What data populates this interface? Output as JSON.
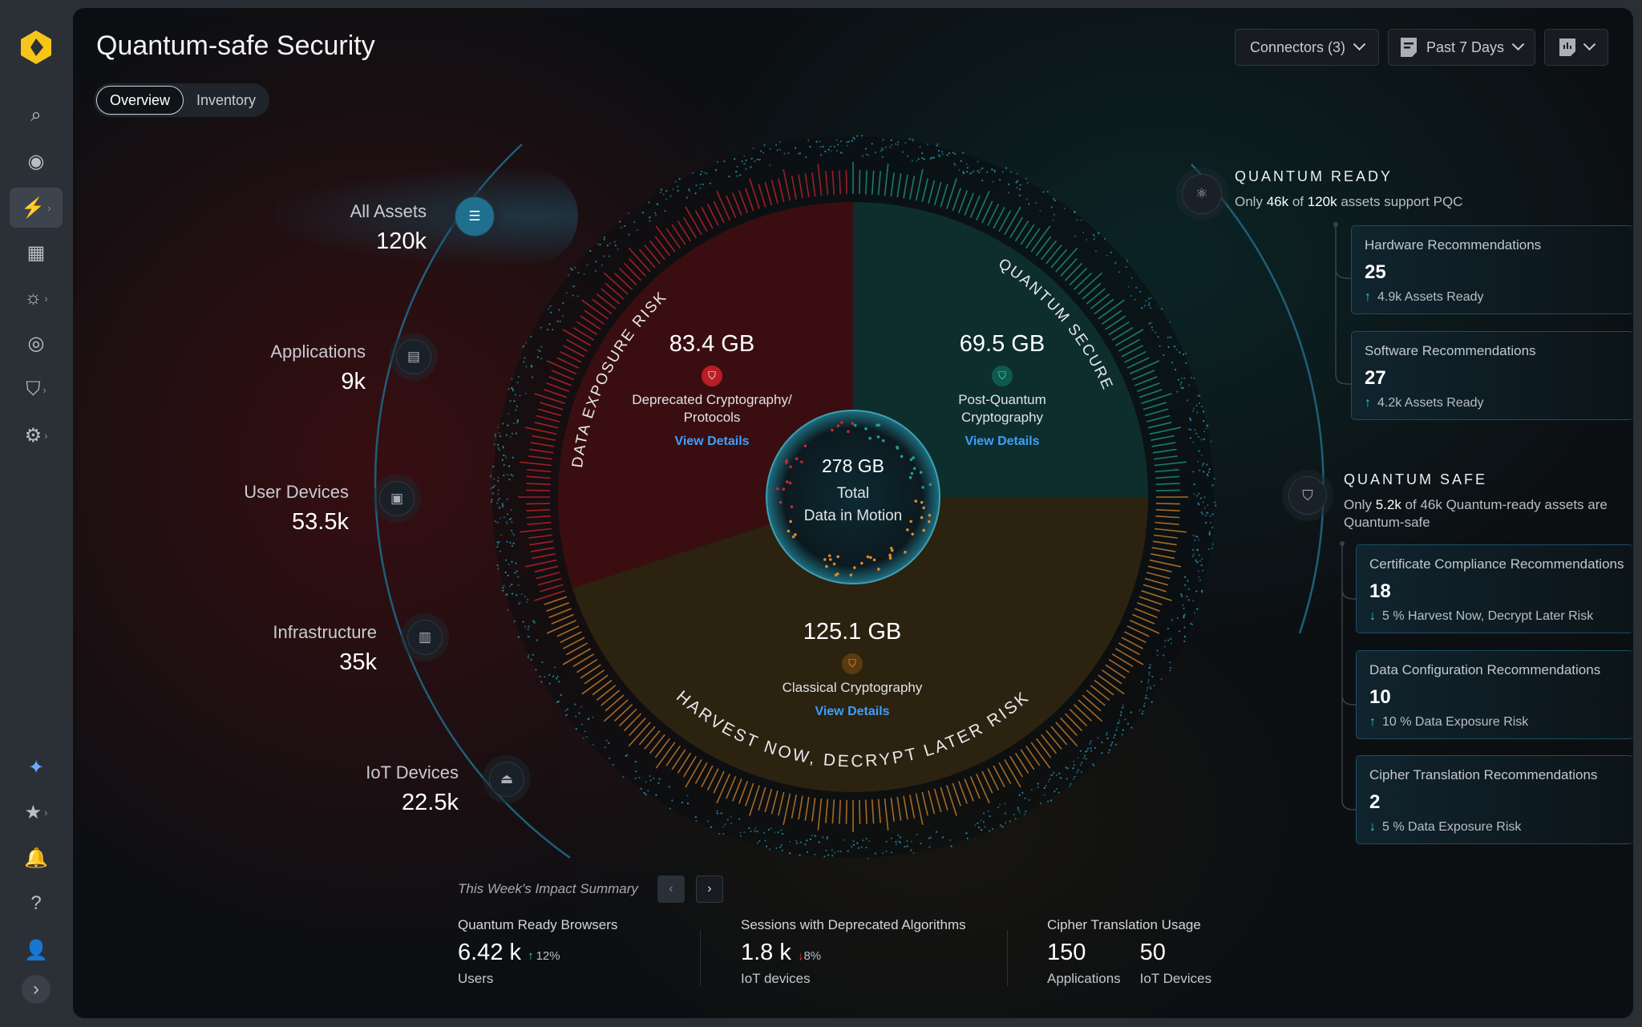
{
  "app": {
    "title": "Quantum-safe Security"
  },
  "tabs": [
    {
      "label": "Overview",
      "selected": true
    },
    {
      "label": "Inventory",
      "selected": false
    }
  ],
  "toolbar": {
    "connectors": "Connectors (3)",
    "range": "Past 7 Days",
    "range_icon": "report-icon",
    "view_icon": "dashboard-icon"
  },
  "sidebar": {
    "items": [
      {
        "icon": "search-icon",
        "glyph": "⌕"
      },
      {
        "icon": "target-icon",
        "glyph": "◉"
      },
      {
        "icon": "analytics-icon",
        "glyph": "⚡",
        "active": true,
        "chev": true
      },
      {
        "icon": "report-icon",
        "glyph": "▦"
      },
      {
        "icon": "alert-icon",
        "glyph": "☼",
        "chev": true
      },
      {
        "icon": "binoculars-icon",
        "glyph": "◎"
      },
      {
        "icon": "shield-search-icon",
        "glyph": "⛉",
        "chev": true
      },
      {
        "icon": "gear-icon",
        "glyph": "⚙",
        "chev": true
      },
      {
        "icon": "sparkle-icon",
        "glyph": "✦"
      },
      {
        "icon": "star-icon",
        "glyph": "★",
        "chev": true
      },
      {
        "icon": "bell-icon",
        "glyph": "🔔"
      },
      {
        "icon": "help-icon",
        "glyph": "?"
      },
      {
        "icon": "user-icon",
        "glyph": "👤"
      },
      {
        "icon": "expand-icon",
        "glyph": "›"
      }
    ]
  },
  "assets": [
    {
      "name": "All Assets",
      "value": "120k",
      "icon": "server-icon"
    },
    {
      "name": "Applications",
      "value": "9k",
      "icon": "app-window-icon"
    },
    {
      "name": "User Devices",
      "value": "53.5k",
      "icon": "devices-icon"
    },
    {
      "name": "Infrastructure",
      "value": "35k",
      "icon": "building-icon"
    },
    {
      "name": "IoT Devices",
      "value": "22.5k",
      "icon": "router-icon"
    }
  ],
  "donut": {
    "total": "278 GB",
    "total_label1": "Total",
    "total_label2": "Data in Motion",
    "segments": [
      {
        "key": "pqc",
        "value": 69.5,
        "display": "69.5 GB",
        "label1": "Post-Quantum",
        "label2": "Cryptography",
        "link": "View Details",
        "arc_label": "QUANTUM SECURE",
        "color": "#1fa08a"
      },
      {
        "key": "classical",
        "value": 125.1,
        "display": "125.1 GB",
        "label1": "Classical Cryptography",
        "label2": "",
        "link": "View Details",
        "arc_label": "HARVEST NOW, DECRYPT LATER RISK",
        "color": "#d9892a"
      },
      {
        "key": "deprecated",
        "value": 83.4,
        "display": "83.4 GB",
        "label1": "Deprecated Cryptography/",
        "label2": "Protocols",
        "link": "View Details",
        "arc_label": "DATA EXPOSURE RISK",
        "color": "#d0252b"
      }
    ]
  },
  "quantum_ready": {
    "title": "QUANTUM READY",
    "pre": "Only ",
    "num": "46k",
    "mid": " of ",
    "num2": "120k",
    "post": " assets support PQC",
    "cards": [
      {
        "title": "Hardware Recommendations",
        "value": "25",
        "trend": "up",
        "sub": "4.9k Assets Ready"
      },
      {
        "title": "Software Recommendations",
        "value": "27",
        "trend": "up",
        "sub": "4.2k Assets Ready"
      }
    ]
  },
  "quantum_safe": {
    "title": "QUANTUM SAFE",
    "pre": "Only ",
    "num": "5.2k",
    "post": " of 46k Quantum-ready assets are Quantum-safe",
    "cards": [
      {
        "title": "Certificate Compliance Recommendations",
        "value": "18",
        "trend": "down",
        "sub": "5 % Harvest Now, Decrypt Later Risk"
      },
      {
        "title": "Data Configuration Recommendations",
        "value": "10",
        "trend": "up",
        "sub": "10 % Data Exposure Risk"
      },
      {
        "title": "Cipher Translation Recommendations",
        "value": "2",
        "trend": "down",
        "sub": "5 % Data Exposure Risk"
      }
    ]
  },
  "summary": {
    "title": "This Week's Impact Summary",
    "browsers": {
      "label": "Quantum Ready Browsers",
      "value": "6.42 k",
      "change": "12%",
      "dir": "up",
      "unit": "Users"
    },
    "sessions": {
      "label": "Sessions with Deprecated Algorithms",
      "value": "1.8 k",
      "change": "8%",
      "dir": "down",
      "unit": "IoT devices"
    },
    "cipher": {
      "label": "Cipher Translation Usage",
      "v1": "150",
      "u1": "Applications",
      "v2": "50",
      "u2": "IoT Devices"
    }
  }
}
